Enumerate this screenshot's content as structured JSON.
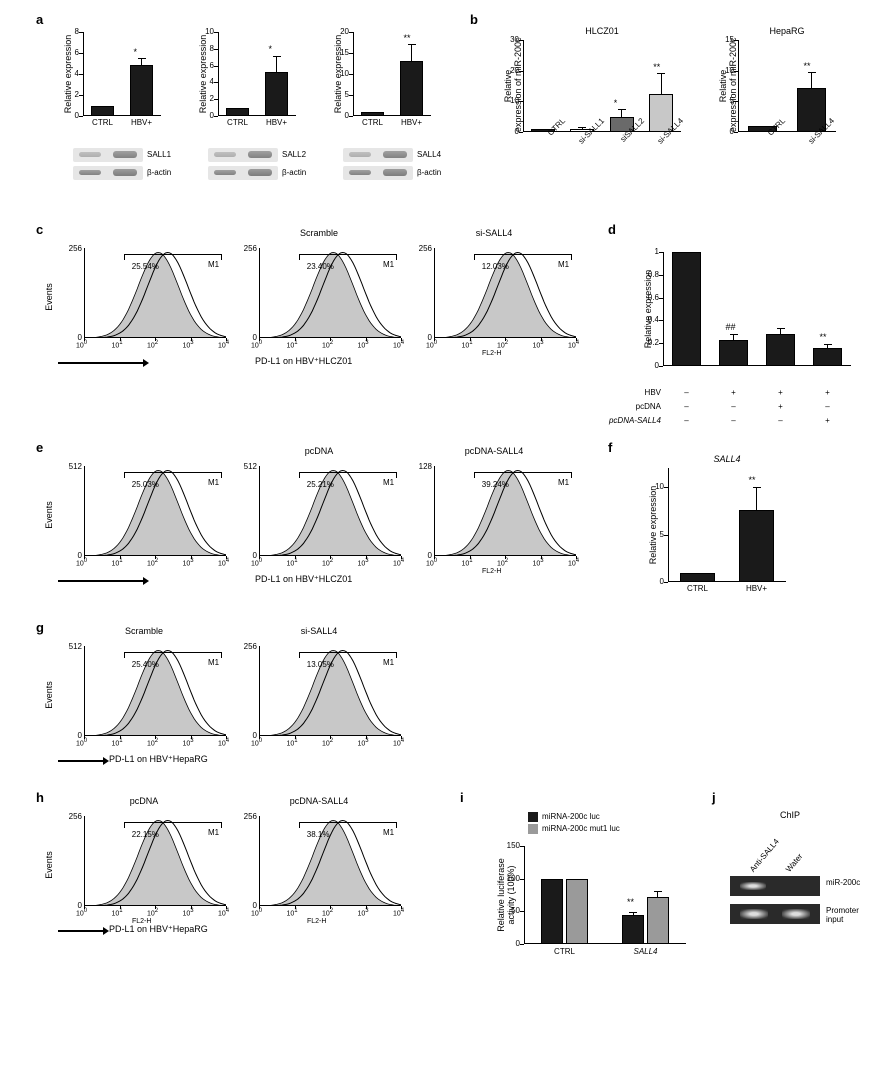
{
  "a": {
    "label": "a",
    "charts": [
      {
        "ylabel": "Relative expression",
        "ymax": 8,
        "ystep": 2,
        "cats": [
          "CTRL",
          "HBV+"
        ],
        "vals": [
          1.0,
          4.85
        ],
        "errs": [
          0,
          0.6
        ],
        "sig": "*",
        "blots": [
          "SALL1",
          "β-actin"
        ],
        "bar_color": "#1a1a1a"
      },
      {
        "ylabel": "Relative expression",
        "ymax": 10,
        "ystep": 2,
        "cats": [
          "CTRL",
          "HBV+"
        ],
        "vals": [
          1.0,
          5.2
        ],
        "errs": [
          0,
          1.9
        ],
        "sig": "*",
        "blots": [
          "SALL2",
          "β-actin"
        ],
        "bar_color": "#1a1a1a"
      },
      {
        "ylabel": "Relative expression",
        "ymax": 20,
        "ystep": 5,
        "cats": [
          "CTRL",
          "HBV+"
        ],
        "vals": [
          1.0,
          13.2
        ],
        "errs": [
          0,
          3.8
        ],
        "sig": "**",
        "blots": [
          "SALL4",
          "β-actin"
        ],
        "bar_color": "#1a1a1a"
      }
    ]
  },
  "b": {
    "label": "b",
    "charts": [
      {
        "title": "HLCZ01",
        "ylabel": "Relative\nexpression of miR-200c",
        "ymax": 30,
        "ystep": 10,
        "cats": [
          "CTRL",
          "si-SALL1",
          "siSALL2",
          "si-SALL4"
        ],
        "vals": [
          1.0,
          1.1,
          5.0,
          12.5
        ],
        "errs": [
          0,
          0.3,
          2.2,
          6.5
        ],
        "sigs": [
          "",
          "",
          "*",
          "**"
        ],
        "colors": [
          "#1a1a1a",
          "#ffffff",
          "#6a6a6a",
          "#c8c8c8"
        ]
      },
      {
        "title": "HepaRG",
        "ylabel": "Relative\nexpression of miR-200c",
        "ymax": 15,
        "ystep": 5,
        "cats": [
          "CTRL",
          "si-SALL4"
        ],
        "vals": [
          1.0,
          7.1
        ],
        "errs": [
          0,
          2.6
        ],
        "sigs": [
          "",
          "**"
        ],
        "colors": [
          "#1a1a1a",
          "#1a1a1a"
        ]
      }
    ]
  },
  "c": {
    "label": "c",
    "histos": [
      {
        "title": "",
        "pct": "25.54%",
        "ymax": 256
      },
      {
        "title": "Scramble",
        "pct": "23.40%",
        "ymax": 256
      },
      {
        "title": "si-SALL4",
        "pct": "12.03%",
        "ymax": 256
      }
    ],
    "ylabel": "Events",
    "arrow_text": "PD-L1 on HBV⁺HLCZ01",
    "xlabel": "FL2-H",
    "gate_label": "M1"
  },
  "d": {
    "label": "d",
    "ylabel": "Relative expression",
    "ymax": 1.0,
    "ystep": 0.2,
    "rows": [
      "HBV",
      "pcDNA",
      "pcDNA-SALL4"
    ],
    "row_vals": [
      [
        "–",
        "+",
        "+",
        "+"
      ],
      [
        "–",
        "–",
        "+",
        "–"
      ],
      [
        "–",
        "–",
        "–",
        "+"
      ]
    ],
    "vals": [
      1.0,
      0.23,
      0.28,
      0.16
    ],
    "errs": [
      0,
      0.05,
      0.05,
      0.03
    ],
    "sigs": [
      "",
      "##",
      "",
      "**"
    ],
    "bar_color": "#1a1a1a",
    "italic_last": true
  },
  "e": {
    "label": "e",
    "histos": [
      {
        "title": "",
        "pct": "25.03%",
        "ymax": 512
      },
      {
        "title": "pcDNA",
        "pct": "25.21%",
        "ymax": 512
      },
      {
        "title": "pcDNA-SALL4",
        "pct": "39.24%",
        "ymax": 128
      }
    ],
    "ylabel": "Events",
    "arrow_text": "PD-L1 on HBV⁺HLCZ01",
    "xlabel": "FL2-H",
    "gate_label": "M1"
  },
  "f": {
    "label": "f",
    "title": "SALL4",
    "ylabel": "Relative expression",
    "ymax": 12,
    "ystep": 5,
    "disp_ticks": [
      0,
      5,
      10
    ],
    "cats": [
      "CTRL",
      "HBV+"
    ],
    "vals": [
      1.0,
      7.6
    ],
    "errs": [
      0,
      2.4
    ],
    "sig": "**",
    "bar_color": "#1a1a1a"
  },
  "g": {
    "label": "g",
    "histos": [
      {
        "title": "Scramble",
        "pct": "25.40%",
        "ymax": 512
      },
      {
        "title": "si-SALL4",
        "pct": "13.05%",
        "ymax": 256
      }
    ],
    "ylabel": "Events",
    "arrow_text": "PD-L1 on HBV⁺HepaRG",
    "xlabel": "FL2-H",
    "gate_label": "M1"
  },
  "h": {
    "label": "h",
    "histos": [
      {
        "title": "pcDNA",
        "pct": "22.15%",
        "ymax": 256
      },
      {
        "title": "pcDNA-SALL4",
        "pct": "38.1%",
        "ymax": 256
      }
    ],
    "ylabel": "Events",
    "arrow_text": "PD-L1 on HBV⁺HepaRG",
    "xlabel": "FL2-H",
    "gate_label": "M1"
  },
  "i": {
    "label": "i",
    "ylabel": "Relative luciferase\nactivity (100%)",
    "ymax": 150,
    "ystep": 50,
    "legend": [
      "miRNA-200c luc",
      "miRNA-200c mut1 luc"
    ],
    "legend_colors": [
      "#1a1a1a",
      "#9a9a9a"
    ],
    "groups": [
      "CTRL",
      "SALL4"
    ],
    "vals": [
      [
        100,
        100
      ],
      [
        44,
        72
      ]
    ],
    "errs": [
      [
        0,
        0
      ],
      [
        5,
        9
      ]
    ],
    "sigs": [
      "",
      "**"
    ]
  },
  "j": {
    "label": "j",
    "title": "ChIP",
    "cols": [
      "Anti-SALL4",
      "Water"
    ],
    "rows": [
      "miR-200c",
      "Promoter\ninput"
    ]
  }
}
